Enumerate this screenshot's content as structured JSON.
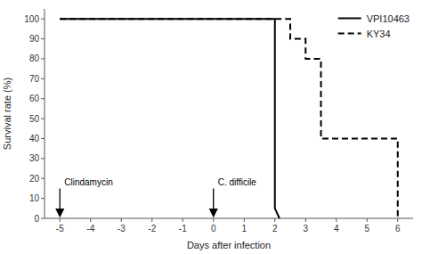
{
  "chart_data": {
    "type": "line",
    "xlabel": "Days after infection",
    "ylabel": "Survival rate (%)",
    "xlim": [
      -5.5,
      6.5
    ],
    "ylim": [
      0,
      105
    ],
    "xticks": [
      -5,
      -4,
      -3,
      -2,
      -1,
      0,
      1,
      2,
      3,
      4,
      5,
      6
    ],
    "yticks": [
      0,
      10,
      20,
      30,
      40,
      50,
      60,
      70,
      80,
      90,
      100
    ],
    "grid": false,
    "legend": "upper right",
    "series": [
      {
        "name": "VPI10463",
        "color": "#000000",
        "line_style": "solid",
        "x": [
          -5,
          2,
          2,
          2.15
        ],
        "values": [
          100,
          100,
          5,
          0
        ]
      },
      {
        "name": "KY34",
        "color": "#000000",
        "line_style": "dashed",
        "x": [
          -5,
          2,
          2,
          2.5,
          2.5,
          3,
          3,
          3.5,
          3.5,
          6,
          6
        ],
        "values": [
          100,
          100,
          100,
          100,
          90,
          90,
          80,
          80,
          40,
          40,
          0
        ]
      }
    ],
    "annotations": [
      {
        "text": "Clindamycin",
        "x": -5,
        "y": 1,
        "y_base": 15
      },
      {
        "text": "C. difficile",
        "x": 0,
        "y": 1,
        "y_base": 15
      }
    ]
  }
}
